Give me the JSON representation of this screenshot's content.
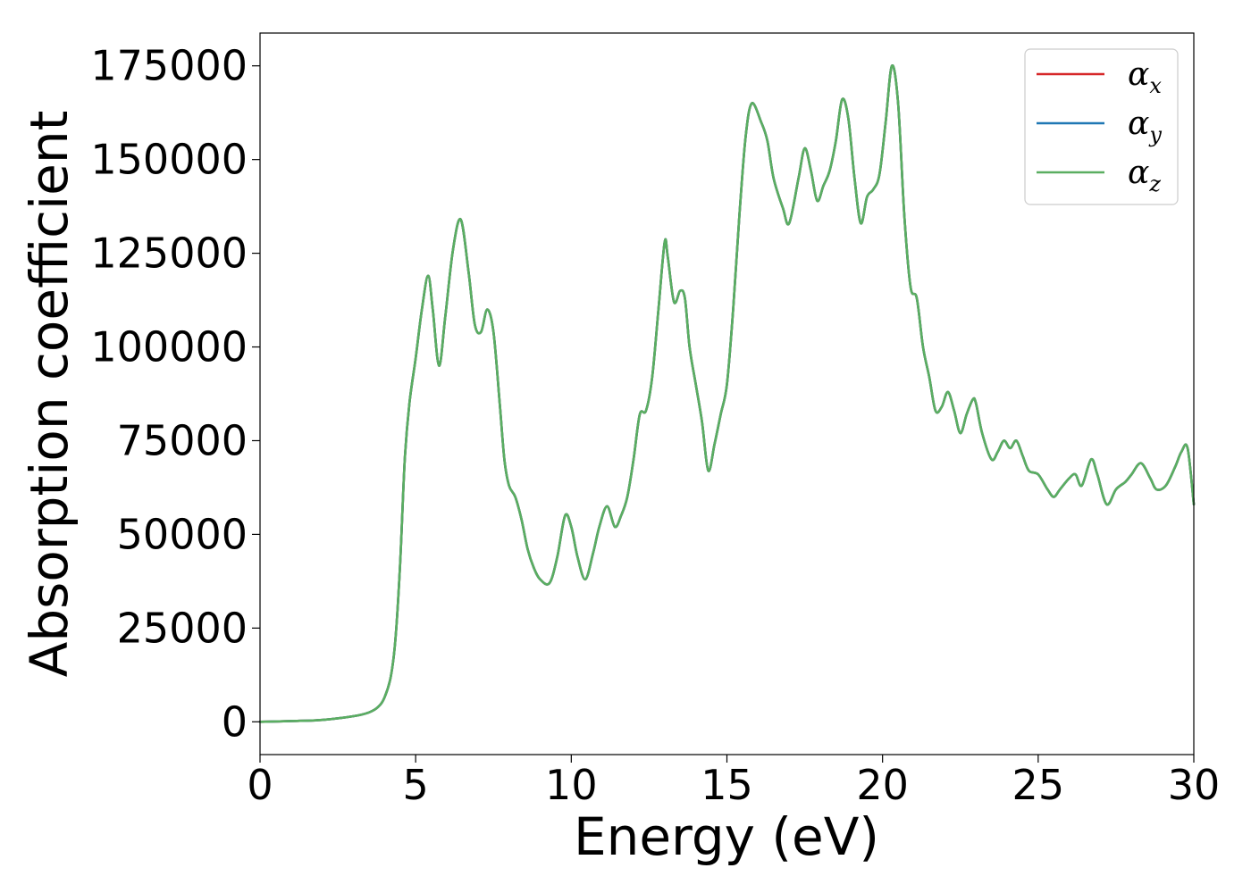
{
  "chart_data": {
    "type": "line",
    "title": "",
    "xlabel": "Energy (eV)",
    "ylabel": "Absorption coefficient",
    "xlim": [
      0,
      30
    ],
    "ylim": [
      -8750,
      183750
    ],
    "xticks": [
      0,
      5,
      10,
      15,
      20,
      25,
      30
    ],
    "xtick_labels": [
      "0",
      "5",
      "10",
      "15",
      "20",
      "25",
      "30"
    ],
    "yticks": [
      0,
      25000,
      50000,
      75000,
      100000,
      125000,
      150000,
      175000
    ],
    "ytick_labels": [
      "0",
      "25000",
      "50000",
      "75000",
      "100000",
      "125000",
      "150000",
      "175000"
    ],
    "grid": false,
    "legend_position": "top-right",
    "x": [
      0,
      1,
      2,
      3,
      3.5,
      3.8,
      4.0,
      4.2,
      4.35,
      4.5,
      4.65,
      4.8,
      5.0,
      5.2,
      5.4,
      5.55,
      5.75,
      5.95,
      6.2,
      6.45,
      6.7,
      6.9,
      7.1,
      7.3,
      7.5,
      7.7,
      7.85,
      8.0,
      8.2,
      8.4,
      8.6,
      8.8,
      9.0,
      9.3,
      9.55,
      9.8,
      10.0,
      10.2,
      10.45,
      10.7,
      10.9,
      11.15,
      11.4,
      11.6,
      11.8,
      12.0,
      12.2,
      12.4,
      12.6,
      12.8,
      13.0,
      13.1,
      13.3,
      13.5,
      13.65,
      13.8,
      14.0,
      14.2,
      14.4,
      14.6,
      14.8,
      15.0,
      15.2,
      15.4,
      15.6,
      15.8,
      16.1,
      16.3,
      16.5,
      16.8,
      17.0,
      17.3,
      17.5,
      17.7,
      17.9,
      18.1,
      18.3,
      18.5,
      18.7,
      18.9,
      19.1,
      19.3,
      19.5,
      19.7,
      19.9,
      20.1,
      20.3,
      20.5,
      20.7,
      20.9,
      21.1,
      21.3,
      21.5,
      21.7,
      21.9,
      22.1,
      22.3,
      22.5,
      22.7,
      22.9,
      23.0,
      23.2,
      23.5,
      23.7,
      23.9,
      24.1,
      24.3,
      24.5,
      24.7,
      25.0,
      25.3,
      25.5,
      25.7,
      26.0,
      26.2,
      26.4,
      26.7,
      26.9,
      27.2,
      27.5,
      27.8,
      28.0,
      28.3,
      28.6,
      28.8,
      29.1,
      29.4,
      29.6,
      29.8,
      30.0
    ],
    "series": [
      {
        "name": "αx",
        "color": "#d62728",
        "y": [
          0,
          200,
          500,
          1500,
          2500,
          4000,
          6500,
          12000,
          22000,
          42000,
          70000,
          85000,
          97000,
          110000,
          119000,
          110000,
          95000,
          108000,
          126000,
          134000,
          120000,
          106000,
          104000,
          110000,
          104000,
          85000,
          70000,
          63000,
          60000,
          54000,
          46000,
          41000,
          38000,
          37000,
          44000,
          55000,
          52000,
          44000,
          38000,
          45000,
          52000,
          57500,
          52000,
          55000,
          60000,
          70000,
          82000,
          83000,
          92000,
          110000,
          128000,
          124000,
          112000,
          115000,
          113000,
          100000,
          90000,
          80000,
          67000,
          74000,
          82000,
          90000,
          110000,
          135000,
          156000,
          165000,
          160000,
          155000,
          145000,
          137000,
          133000,
          145000,
          153000,
          147000,
          139000,
          143000,
          147000,
          155000,
          166000,
          161000,
          145000,
          133000,
          140000,
          142000,
          146000,
          160000,
          175000,
          165000,
          135000,
          116000,
          113000,
          100000,
          92000,
          83000,
          84000,
          88000,
          83000,
          77000,
          82000,
          86000,
          85000,
          77000,
          70000,
          72000,
          75000,
          73000,
          75000,
          71000,
          67000,
          66000,
          62000,
          60000,
          62000,
          65000,
          66000,
          63000,
          70000,
          66000,
          58000,
          62000,
          64000,
          66000,
          69000,
          65000,
          62000,
          63000,
          68000,
          72000,
          73000,
          58000
        ]
      },
      {
        "name": "αy",
        "color": "#1f77b4",
        "y": [
          0,
          200,
          500,
          1500,
          2500,
          4000,
          6500,
          12000,
          22000,
          42000,
          70000,
          85000,
          97000,
          110000,
          119000,
          110000,
          95000,
          108000,
          126000,
          134000,
          120000,
          106000,
          104000,
          110000,
          104000,
          85000,
          70000,
          63000,
          60000,
          54000,
          46000,
          41000,
          38000,
          37000,
          44000,
          55000,
          52000,
          44000,
          38000,
          45000,
          52000,
          57500,
          52000,
          55000,
          60000,
          70000,
          82000,
          83000,
          92000,
          110000,
          128000,
          124000,
          112000,
          115000,
          113000,
          100000,
          90000,
          80000,
          67000,
          74000,
          82000,
          90000,
          110000,
          135000,
          156000,
          165000,
          160000,
          155000,
          145000,
          137000,
          133000,
          145000,
          153000,
          147000,
          139000,
          143000,
          147000,
          155000,
          166000,
          161000,
          145000,
          133000,
          140000,
          142000,
          146000,
          160000,
          175000,
          165000,
          135000,
          116000,
          113000,
          100000,
          92000,
          83000,
          84000,
          88000,
          83000,
          77000,
          82000,
          86000,
          85000,
          77000,
          70000,
          72000,
          75000,
          73000,
          75000,
          71000,
          67000,
          66000,
          62000,
          60000,
          62000,
          65000,
          66000,
          63000,
          70000,
          66000,
          58000,
          62000,
          64000,
          66000,
          69000,
          65000,
          62000,
          63000,
          68000,
          72000,
          73000,
          58000
        ]
      },
      {
        "name": "αz",
        "color": "#5aae61",
        "y": [
          0,
          200,
          500,
          1500,
          2500,
          4000,
          6500,
          12000,
          22000,
          42000,
          70000,
          85000,
          97000,
          110000,
          119000,
          110000,
          95000,
          108000,
          126000,
          134000,
          120000,
          106000,
          104000,
          110000,
          104000,
          85000,
          70000,
          63000,
          60000,
          54000,
          46000,
          41000,
          38000,
          37000,
          44000,
          55000,
          52000,
          44000,
          38000,
          45000,
          52000,
          57500,
          52000,
          55000,
          60000,
          70000,
          82000,
          83000,
          92000,
          110000,
          128000,
          124000,
          112000,
          115000,
          113000,
          100000,
          90000,
          80000,
          67000,
          74000,
          82000,
          90000,
          110000,
          135000,
          156000,
          165000,
          160000,
          155000,
          145000,
          137000,
          133000,
          145000,
          153000,
          147000,
          139000,
          143000,
          147000,
          155000,
          166000,
          161000,
          145000,
          133000,
          140000,
          142000,
          146000,
          160000,
          175000,
          165000,
          135000,
          116000,
          113000,
          100000,
          92000,
          83000,
          84000,
          88000,
          83000,
          77000,
          82000,
          86000,
          85000,
          77000,
          70000,
          72000,
          75000,
          73000,
          75000,
          71000,
          67000,
          66000,
          62000,
          60000,
          62000,
          65000,
          66000,
          63000,
          70000,
          66000,
          58000,
          62000,
          64000,
          66000,
          69000,
          65000,
          62000,
          63000,
          68000,
          72000,
          73000,
          58000
        ]
      }
    ],
    "legend": [
      {
        "base": "α",
        "sub": "x",
        "color": "#d62728"
      },
      {
        "base": "α",
        "sub": "y",
        "color": "#1f77b4"
      },
      {
        "base": "α",
        "sub": "z",
        "color": "#5aae61"
      }
    ]
  }
}
